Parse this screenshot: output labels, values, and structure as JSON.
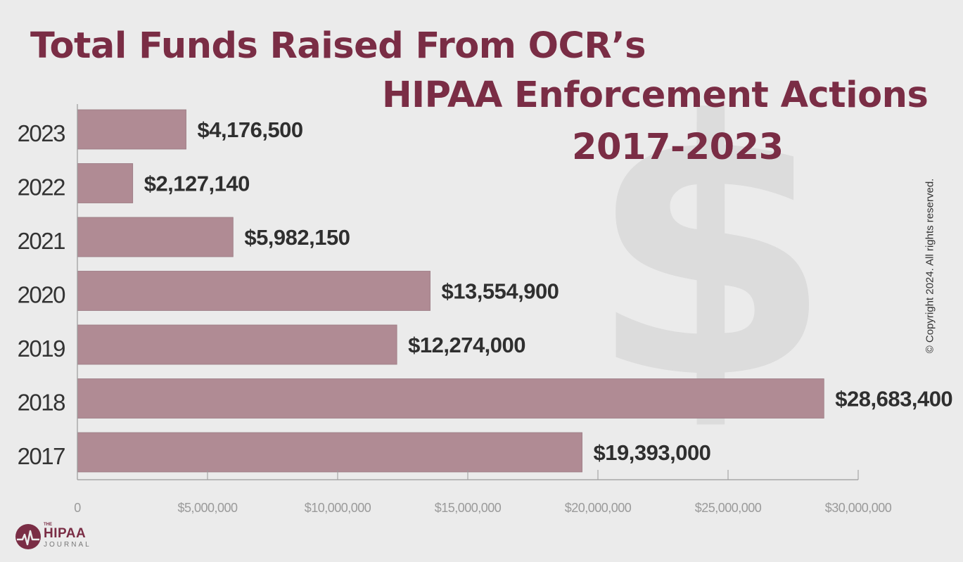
{
  "title": {
    "line1": "Total Funds Raised From OCR’s",
    "line2": "HIPAA Enforcement Actions",
    "line3": "2017-2023"
  },
  "copyright": "© Copyright 2024. All rights reserved.",
  "logo": {
    "the": "THE",
    "hipaa": "HIPAA",
    "journal": "JOURNAL"
  },
  "colors": {
    "bar": "#b08b94",
    "title": "#7a2d45",
    "background": "#ebebeb",
    "watermark": "#dcdcdc"
  },
  "watermark_icon": "dollar-sign-icon",
  "chart_data": {
    "type": "bar",
    "orientation": "horizontal",
    "categories": [
      "2023",
      "2022",
      "2021",
      "2020",
      "2019",
      "2018",
      "2017"
    ],
    "values": [
      4176500,
      2127140,
      5982150,
      13554900,
      12274000,
      28683400,
      19393000
    ],
    "data_labels": [
      "$4,176,500",
      "$2,127,140",
      "$5,982,150",
      "$13,554,900",
      "$12,274,000",
      "$28,683,400",
      "$19,393,000"
    ],
    "xlim": [
      0,
      30000000
    ],
    "x_ticks": [
      0,
      5000000,
      10000000,
      15000000,
      20000000,
      25000000,
      30000000
    ],
    "x_tick_labels": [
      "0",
      "$5,000,000",
      "$10,000,000",
      "$15,000,000",
      "$20,000,000",
      "$25,000,000",
      "$30,000,000"
    ],
    "grid": false,
    "legend": "none"
  }
}
